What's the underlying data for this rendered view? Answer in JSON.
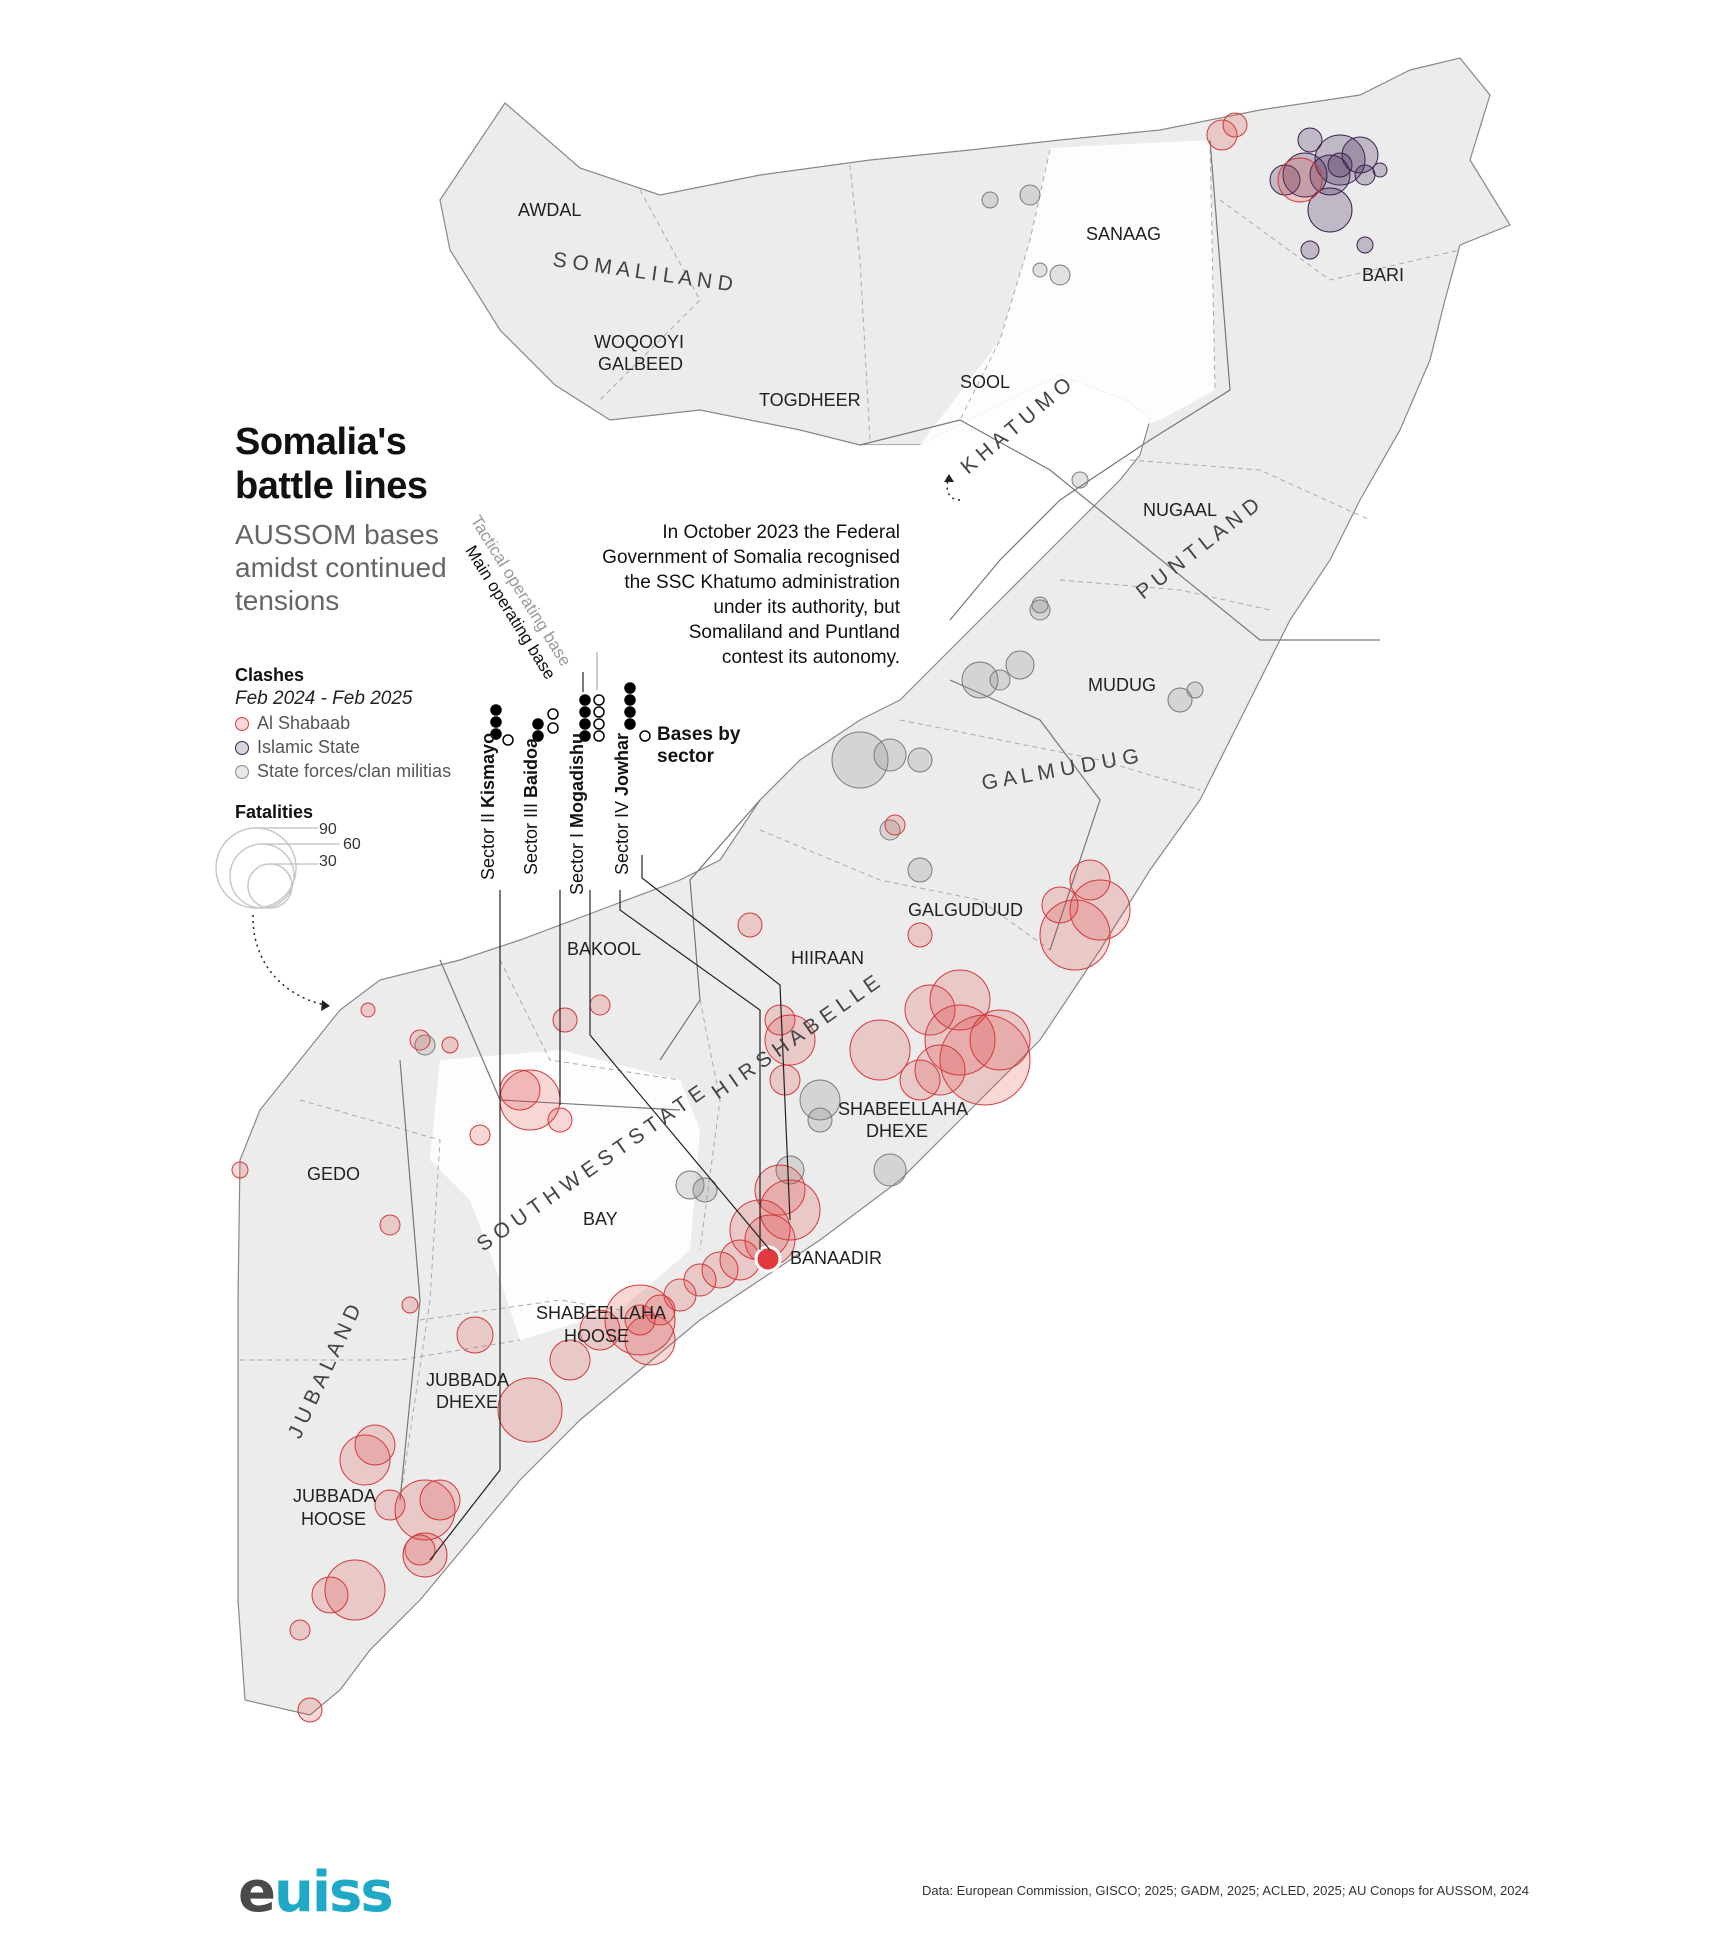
{
  "title_line1": "Somalia's",
  "title_line2": "battle lines",
  "subtitle_line1": "AUSSOM bases",
  "subtitle_line2": "amidst continued",
  "subtitle_line3": "tensions",
  "legend": {
    "clashes_title": "Clashes",
    "period": "Feb 2024 - Feb 2025",
    "items": [
      {
        "label": "Al Shabaab",
        "color": "#e03a3e"
      },
      {
        "label": "Islamic State",
        "color": "#3a2150"
      },
      {
        "label": "State forces/clan militias",
        "color": "#8a8a8a"
      }
    ],
    "fatalities_title": "Fatalities",
    "fatality_sizes": [
      "90",
      "60",
      "30"
    ]
  },
  "bases": {
    "tactical_label": "Tactical operating base",
    "main_label": "Main operating base",
    "bases_by_sector_line1": "Bases by",
    "bases_by_sector_line2": "sector",
    "sectors": [
      {
        "prefix": "Sector II ",
        "name": "Kismayo",
        "main": 3,
        "tactical": 1
      },
      {
        "prefix": "Sector III ",
        "name": "Baidoa",
        "main": 2,
        "tactical": 2
      },
      {
        "prefix": "Sector I ",
        "name": "Mogadishu",
        "main": 4,
        "tactical": 4
      },
      {
        "prefix": "Sector IV ",
        "name": "Jowhar",
        "main": 4,
        "tactical": 1
      }
    ]
  },
  "annotation": {
    "line1": "In October 2023 the Federal",
    "line2": "Government of Somalia recognised",
    "line3": "the SSC Khatumo administration",
    "line4": "under its authority, but",
    "line5": "Somaliland and Puntland",
    "line6": "contest its autonomy."
  },
  "states": {
    "somaliland": "S O M A L I L A N D",
    "khatumo": "K H A T U M O",
    "puntland": "P U N T L A N D",
    "galmudug": "G A L M U D U G",
    "hirshabelle": "H I R S H A B E L L E",
    "southwest": "S O U T H W E S T   S T A T E",
    "jubaland": "J U B A L A N D"
  },
  "regions": {
    "awdal": "AWDAL",
    "woqooyi1": "WOQOOYI",
    "woqooyi2": "GALBEED",
    "togdheer": "TOGDHEER",
    "sanaag": "SANAAG",
    "sool": "SOOL",
    "bari": "BARI",
    "nugaal": "NUGAAL",
    "mudug": "MUDUG",
    "galguduud": "GALGUDUUD",
    "hiiraan": "HIIRAAN",
    "bakool": "BAKOOL",
    "shabdhexe1": "SHABEELLAHA",
    "shabdhexe2": "DHEXE",
    "banaadir": "BANAADIR",
    "gedo": "GEDO",
    "bay": "BAY",
    "shabhoose1": "SHABEELLAHA",
    "shabhoose2": "HOOSE",
    "jubdhexe1": "JUBBADA",
    "jubdhexe2": "DHEXE",
    "jubhoose1": "JUBBADA",
    "jubhoose2": "HOOSE"
  },
  "source": "Data: European Commission, GISCO; 2025; GADM, 2025; ACLED, 2025; AU Conops for AUSSOM, 2024",
  "logo_first": "e",
  "logo_rest": "uiss"
}
